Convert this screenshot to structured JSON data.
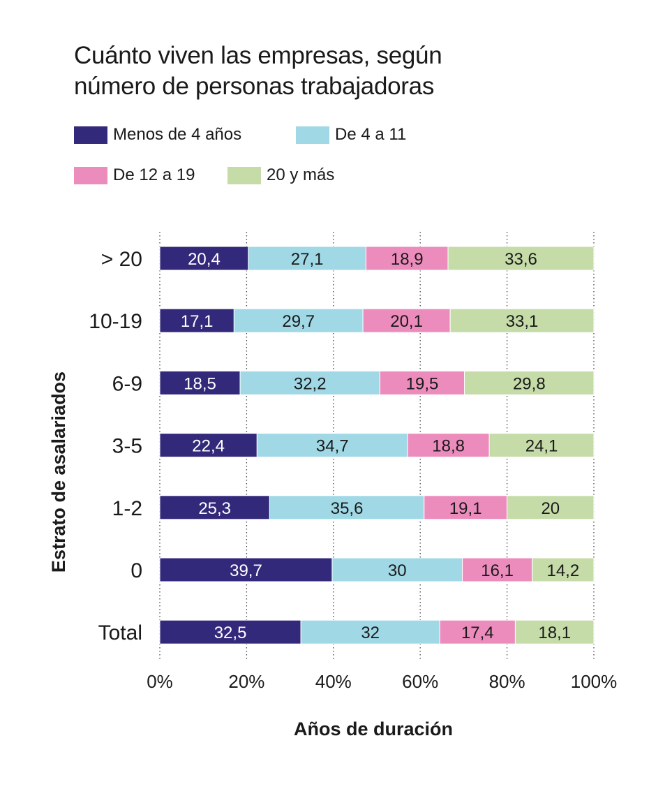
{
  "title_line1": "Cuánto viven las empresas, según",
  "title_line2": "número de personas trabajadoras",
  "chart_data": {
    "type": "bar",
    "orientation": "horizontal",
    "stacked": true,
    "percent": true,
    "categories": [
      "> 20",
      "10-19",
      "6-9",
      "3-5",
      "1-2",
      "0",
      "Total"
    ],
    "series": [
      {
        "name": "Menos de 4 años",
        "color": "#33297a",
        "label_color": "#ffffff",
        "values": [
          "20,4",
          "17,1",
          "18,5",
          "22,4",
          "25,3",
          "39,7",
          "32,5"
        ]
      },
      {
        "name": "De 4 a 11",
        "color": "#a0d8e6",
        "label_color": "#1a1a1a",
        "values": [
          "27,1",
          "29,7",
          "32,2",
          "34,7",
          "35,6",
          "30",
          "32"
        ]
      },
      {
        "name": "De 12 a 19",
        "color": "#ec8cbc",
        "label_color": "#1a1a1a",
        "values": [
          "18,9",
          "20,1",
          "19,5",
          "18,8",
          "19,1",
          "16,1",
          "17,4"
        ]
      },
      {
        "name": "20 y más",
        "color": "#c5dba8",
        "label_color": "#1a1a1a",
        "values": [
          "33,6",
          "33,1",
          "29,8",
          "24,1",
          "20",
          "14,2",
          "18,1"
        ]
      }
    ],
    "xlabel": "Años de duración",
    "ylabel": "Estrato de asalariados",
    "xlim": [
      0,
      100
    ],
    "xticks": [
      "0%",
      "20%",
      "40%",
      "60%",
      "80%",
      "100%"
    ],
    "grid": "vertical-dotted",
    "legend_position": "top-left"
  }
}
